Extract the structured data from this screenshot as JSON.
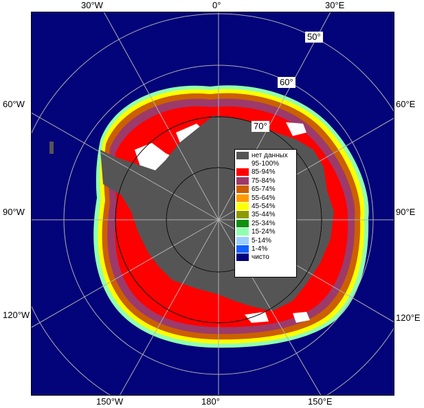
{
  "map": {
    "lon_labels": {
      "top": [
        "30°W",
        "0°",
        "30°E"
      ],
      "bottom": [
        "150°W",
        "180°",
        "150°E"
      ],
      "left": [
        "60°W",
        "90°W",
        "120°W"
      ],
      "right": [
        "60°E",
        "90°E",
        "120°E"
      ]
    },
    "lat_labels": [
      "50°",
      "60°",
      "70°"
    ]
  },
  "legend": {
    "items": [
      {
        "label": "нет данных",
        "color": "#555555"
      },
      {
        "label": "95-100%",
        "color": "#ffffff"
      },
      {
        "label": "85-94%",
        "color": "#ff0000"
      },
      {
        "label": "75-84%",
        "color": "#9c3a6a"
      },
      {
        "label": "65-74%",
        "color": "#cc5f00"
      },
      {
        "label": "55-64%",
        "color": "#ff9a00"
      },
      {
        "label": "45-54%",
        "color": "#ffff00"
      },
      {
        "label": "35-44%",
        "color": "#8c9a00"
      },
      {
        "label": "25-34%",
        "color": "#109010"
      },
      {
        "label": "15-24%",
        "color": "#90ffb0"
      },
      {
        "label": "5-14%",
        "color": "#9ad0ff"
      },
      {
        "label": "1-4%",
        "color": "#1060ff"
      },
      {
        "label": "чисто",
        "color": "#03037a"
      }
    ]
  },
  "colors": {
    "ocean": "#03037a",
    "land": "#555555",
    "grid": "#b0b0b0"
  }
}
